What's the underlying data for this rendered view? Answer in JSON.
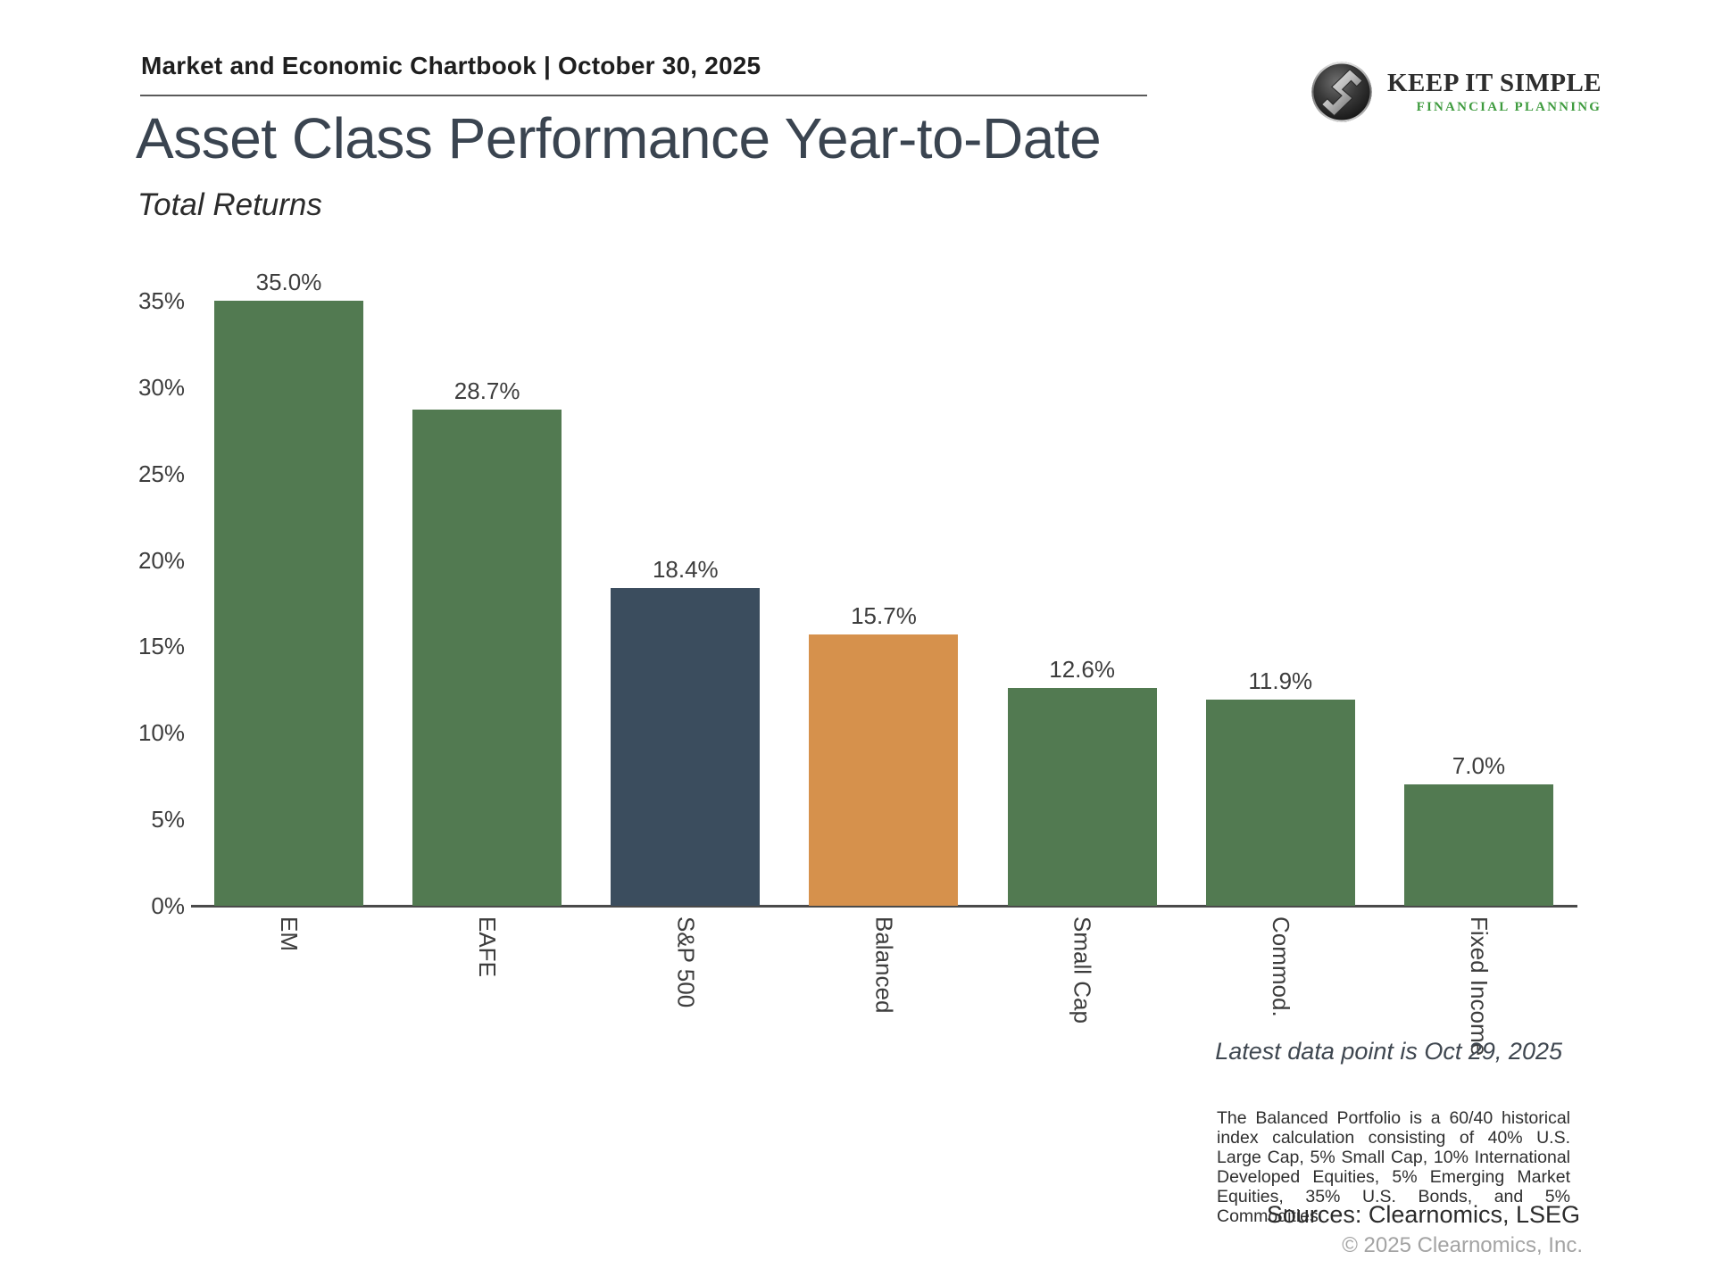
{
  "header": {
    "chartbook_label": "Market and Economic Chartbook | October 30, 2025"
  },
  "logo": {
    "name": "KEEP IT SIMPLE",
    "tagline": "FINANCIAL PLANNING"
  },
  "title": "Asset Class Performance Year-to-Date",
  "subtitle": "Total Returns",
  "chart_data": {
    "type": "bar",
    "title": "Asset Class Performance Year-to-Date",
    "subtitle": "Total Returns",
    "categories": [
      "EM",
      "EAFE",
      "S&P 500",
      "Balanced",
      "Small Cap",
      "Commod.",
      "Fixed Income"
    ],
    "values": [
      35.0,
      28.7,
      18.4,
      15.7,
      12.6,
      11.9,
      7.0
    ],
    "value_labels": [
      "35.0%",
      "28.7%",
      "18.4%",
      "15.7%",
      "12.6%",
      "11.9%",
      "7.0%"
    ],
    "bar_colors": [
      "#527a51",
      "#527a51",
      "#3b4d5e",
      "#d6914c",
      "#527a51",
      "#527a51",
      "#527a51"
    ],
    "yticks": [
      0,
      5,
      10,
      15,
      20,
      25,
      30,
      35
    ],
    "ytick_suffix": "%",
    "ylim": [
      0,
      35
    ],
    "xlabel": "",
    "ylabel": "",
    "grid": false,
    "legend": "none"
  },
  "colors": {
    "green": "#527a51",
    "navy": "#3b4d5e",
    "orange": "#d6914c",
    "title_text": "#3a4450",
    "tagline_green": "#3e9b3e"
  },
  "footer": {
    "latest_note": "Latest data point is Oct 29, 2025",
    "balanced_note": "The Balanced Portfolio is a 60/40 historical index calculation consisting of 40% U.S. Large Cap, 5% Small Cap, 10% International Developed Equities, 5% Emerging Market Equities, 35% U.S. Bonds, and 5% Commodities.",
    "sources": "Sources: Clearnomics, LSEG",
    "copyright": "© 2025 Clearnomics, Inc."
  }
}
